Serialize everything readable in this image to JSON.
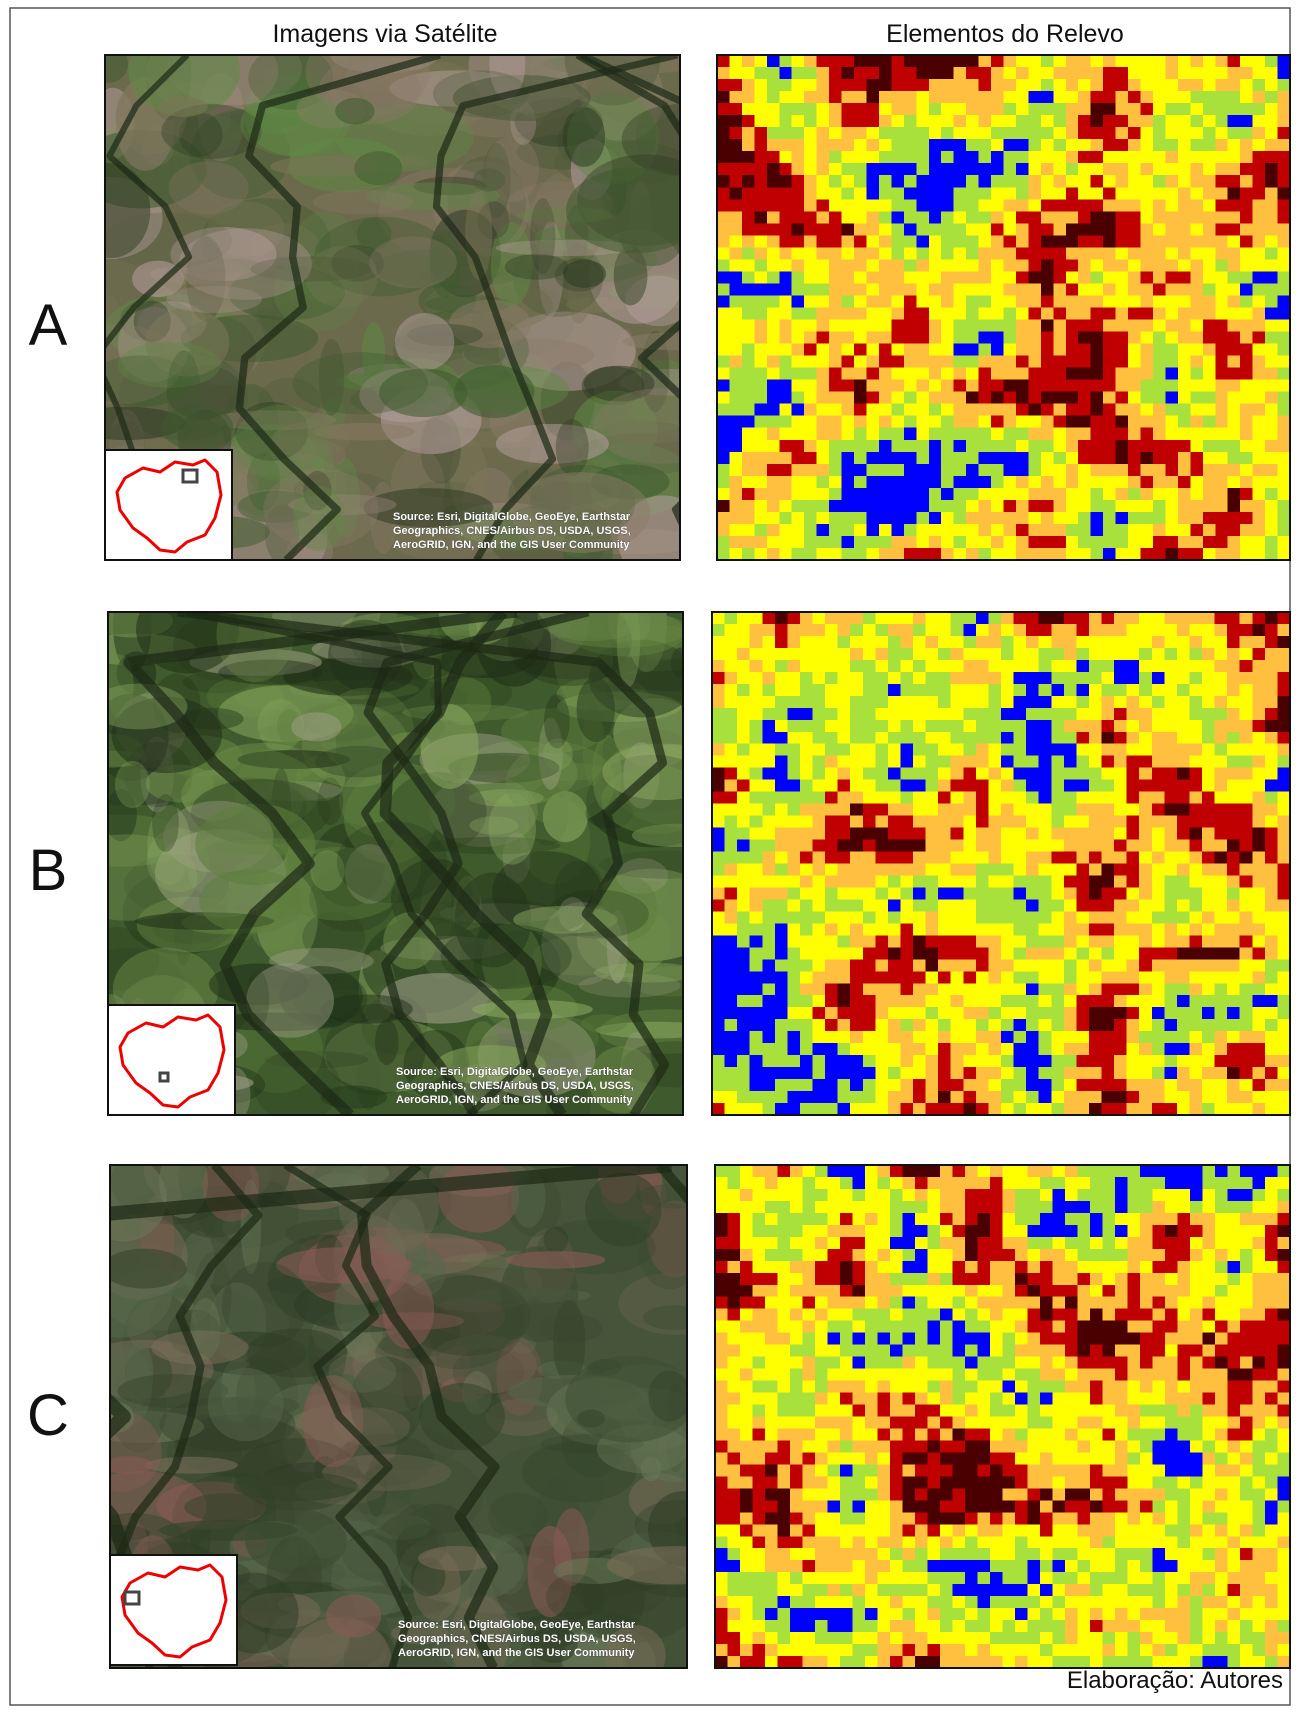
{
  "headers": [
    "Imagens via Satélite",
    "Elementos do Relevo"
  ],
  "rows": [
    {
      "label": "A",
      "source": [
        "Source: Esri, DigitalGlobe, GeoEye, Earthstar",
        "Geographics, CNES/Airbus DS, USDA, USGS,",
        "AeroGRID, IGN, and the GIS User Community"
      ]
    },
    {
      "label": "B",
      "source": [
        "Source: Esri, DigitalGlobe, GeoEye, Earthstar",
        "Geographics, CNES/Airbus DS, USDA, USGS,",
        "AeroGRID, IGN, and the GIS User Community"
      ]
    },
    {
      "label": "C",
      "source": [
        "Source: Esri, DigitalGlobe, GeoEye, Earthstar",
        "Geographics, CNES/Airbus DS, USDA, USGS,",
        "AeroGRID, IGN, and the GIS User Community"
      ]
    }
  ],
  "footer": "Elaboração: Autores"
}
